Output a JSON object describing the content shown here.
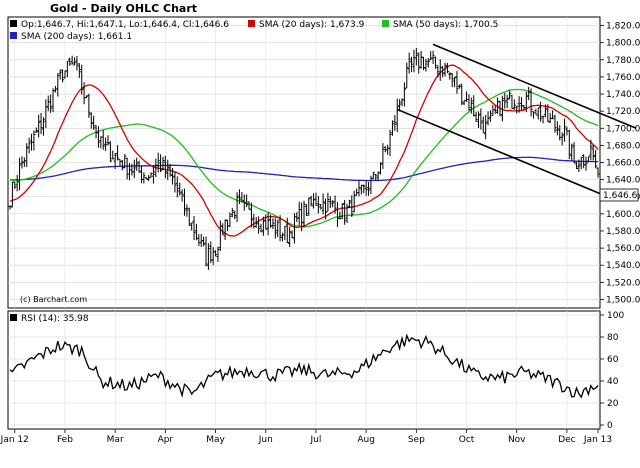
{
  "chart_data": {
    "title": "Gold - Daily OHLC Chart",
    "type": "ohlc",
    "copyright": "(c) Barchart.com",
    "legend": [
      {
        "label": "Op:1,646.7, Hi:1,647.1, Lo:1,646.4, Cl:1,646.6",
        "color": "#000000"
      },
      {
        "label": "SMA (20 days): 1,673.9",
        "color": "#d40000"
      },
      {
        "label": "SMA (50 days): 1,700.5",
        "color": "#22bb22"
      },
      {
        "label": "SMA (200 days): 1,661.1",
        "color": "#2222bb"
      }
    ],
    "price_axis": {
      "ylim": [
        1490,
        1830
      ],
      "ticks": [
        "1,820.0",
        "1,800.0",
        "1,780.0",
        "1,760.0",
        "1,740.0",
        "1,720.0",
        "1,700.0",
        "1,680.0",
        "1,660.0",
        "1,640.0",
        "1,620.0",
        "1,600.0",
        "1,580.0",
        "1,560.0",
        "1,540.0",
        "1,520.0",
        "1,500.0"
      ],
      "last_price_label": "1,646.6",
      "last_price": 1646.6
    },
    "months": [
      "Jan 12",
      "Feb",
      "Mar",
      "Apr",
      "May",
      "Jun",
      "Jul",
      "Aug",
      "Sep",
      "Oct",
      "Nov",
      "Dec",
      "Jan 13"
    ],
    "close_anchors": [
      [
        0,
        1620
      ],
      [
        5,
        1660
      ],
      [
        12,
        1700
      ],
      [
        18,
        1740
      ],
      [
        22,
        1765
      ],
      [
        27,
        1775
      ],
      [
        32,
        1730
      ],
      [
        38,
        1680
      ],
      [
        45,
        1665
      ],
      [
        52,
        1650
      ],
      [
        58,
        1645
      ],
      [
        62,
        1660
      ],
      [
        68,
        1640
      ],
      [
        74,
        1600
      ],
      [
        78,
        1575
      ],
      [
        82,
        1550
      ],
      [
        86,
        1560
      ],
      [
        90,
        1590
      ],
      [
        95,
        1610
      ],
      [
        100,
        1600
      ],
      [
        105,
        1590
      ],
      [
        110,
        1585
      ],
      [
        116,
        1575
      ],
      [
        122,
        1600
      ],
      [
        128,
        1615
      ],
      [
        134,
        1610
      ],
      [
        140,
        1600
      ],
      [
        146,
        1620
      ],
      [
        152,
        1640
      ],
      [
        158,
        1680
      ],
      [
        163,
        1730
      ],
      [
        167,
        1770
      ],
      [
        172,
        1780
      ],
      [
        177,
        1775
      ],
      [
        182,
        1770
      ],
      [
        188,
        1745
      ],
      [
        194,
        1720
      ],
      [
        199,
        1700
      ],
      [
        205,
        1725
      ],
      [
        211,
        1735
      ],
      [
        216,
        1735
      ],
      [
        221,
        1720
      ],
      [
        227,
        1705
      ],
      [
        232,
        1695
      ],
      [
        236,
        1660
      ],
      [
        240,
        1665
      ],
      [
        243,
        1675
      ],
      [
        246,
        1647
      ]
    ],
    "trend_lines": [
      {
        "from": [
          177,
          1798
        ],
        "to": [
          262,
          1700
        ]
      },
      {
        "from": [
          162,
          1722
        ],
        "to": [
          250,
          1620
        ]
      }
    ],
    "rsi": {
      "label": "RSI (14): 35.98",
      "value": 35.98,
      "ylim": [
        0,
        100
      ],
      "ticks": [
        "100",
        "80",
        "60",
        "40",
        "20",
        "0"
      ],
      "anchors": [
        [
          0,
          45
        ],
        [
          10,
          60
        ],
        [
          20,
          72
        ],
        [
          30,
          68
        ],
        [
          38,
          40
        ],
        [
          50,
          35
        ],
        [
          62,
          45
        ],
        [
          70,
          35
        ],
        [
          76,
          28
        ],
        [
          86,
          45
        ],
        [
          100,
          50
        ],
        [
          110,
          45
        ],
        [
          122,
          50
        ],
        [
          134,
          45
        ],
        [
          146,
          50
        ],
        [
          152,
          60
        ],
        [
          160,
          72
        ],
        [
          168,
          78
        ],
        [
          175,
          75
        ],
        [
          185,
          60
        ],
        [
          195,
          45
        ],
        [
          205,
          42
        ],
        [
          215,
          48
        ],
        [
          225,
          42
        ],
        [
          232,
          35
        ],
        [
          238,
          28
        ],
        [
          243,
          35
        ],
        [
          246,
          36
        ]
      ]
    }
  }
}
